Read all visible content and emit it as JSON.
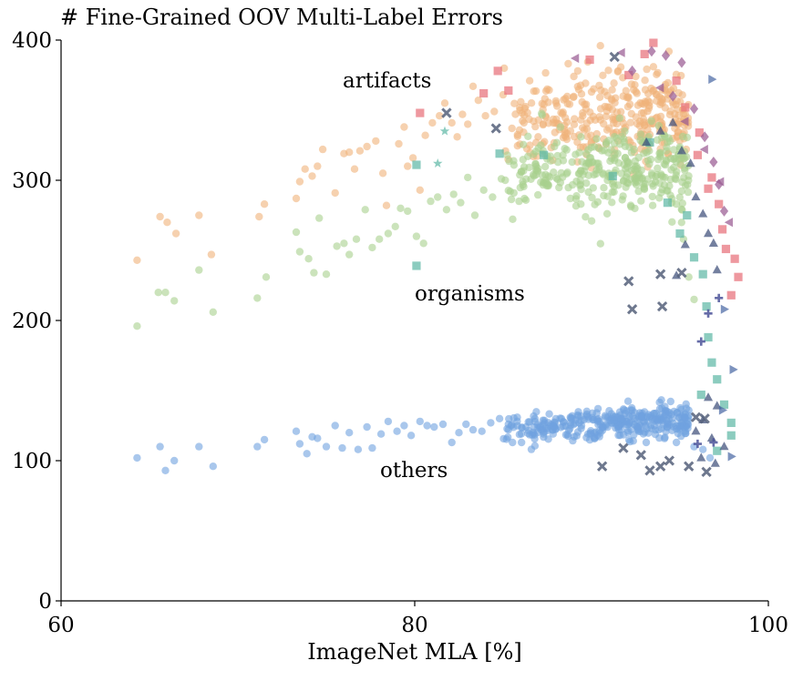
{
  "chart_data": {
    "type": "scatter",
    "title": "# Fine-Grained OOV Multi-Label Errors",
    "xlabel": "ImageNet MLA [%]",
    "ylabel": "",
    "xlim": [
      60,
      100
    ],
    "ylim": [
      0,
      400
    ],
    "xticks": [
      "60",
      "80",
      "100"
    ],
    "yticks": [
      "0",
      "100",
      "200",
      "300",
      "400"
    ],
    "grid": false,
    "annotations": [
      {
        "text": "artifacts",
        "x": 78.5,
        "y": 368
      },
      {
        "text": "organisms",
        "x": 83.0,
        "y": 216
      },
      {
        "text": "others",
        "x": 79.8,
        "y": 90
      }
    ],
    "groups": [
      {
        "label": "artifacts",
        "color": "#f0b27a",
        "y_center": 345,
        "points": [
          [
            64.3,
            243
          ],
          [
            65.6,
            274
          ],
          [
            66.0,
            270
          ],
          [
            66.5,
            262
          ],
          [
            67.8,
            275
          ],
          [
            68.5,
            247
          ],
          [
            71.2,
            274
          ],
          [
            71.5,
            283
          ],
          [
            73.3,
            287
          ],
          [
            73.5,
            299
          ],
          [
            73.8,
            308
          ],
          [
            74.2,
            303
          ],
          [
            74.5,
            310
          ],
          [
            74.8,
            322
          ],
          [
            75.5,
            291
          ],
          [
            76.0,
            319
          ],
          [
            76.3,
            320
          ],
          [
            76.6,
            308
          ],
          [
            76.9,
            321
          ],
          [
            77.3,
            324
          ],
          [
            77.8,
            328
          ],
          [
            78.2,
            305
          ],
          [
            78.4,
            282
          ],
          [
            79.1,
            326
          ],
          [
            79.4,
            338
          ],
          [
            79.6,
            310
          ],
          [
            79.9,
            316
          ],
          [
            80.3,
            293
          ],
          [
            80.6,
            332
          ],
          [
            81.0,
            341
          ],
          [
            81.4,
            346
          ],
          [
            81.7,
            355
          ],
          [
            82.1,
            341
          ],
          [
            82.4,
            331
          ],
          [
            82.7,
            347
          ],
          [
            83.0,
            340
          ],
          [
            83.3,
            367
          ],
          [
            83.6,
            357
          ],
          [
            84.0,
            346
          ],
          [
            84.5,
            349
          ],
          [
            85.0,
            361
          ],
          [
            85.5,
            337
          ],
          [
            86.0,
            356
          ],
          [
            86.5,
            371
          ],
          [
            87.0,
            343
          ],
          [
            87.5,
            365
          ],
          [
            88.0,
            355
          ],
          [
            88.5,
            334
          ],
          [
            89.0,
            374
          ],
          [
            89.5,
            348
          ],
          [
            90.0,
            363
          ],
          [
            90.5,
            396
          ],
          [
            91.0,
            352
          ],
          [
            91.5,
            378
          ],
          [
            92.0,
            359
          ],
          [
            92.5,
            374
          ],
          [
            93.0,
            339
          ],
          [
            93.5,
            381
          ],
          [
            94.0,
            355
          ],
          [
            94.5,
            364
          ]
        ]
      },
      {
        "label": "organisms",
        "color": "#a8d08d",
        "y_center": 305,
        "points": [
          [
            64.3,
            196
          ],
          [
            65.5,
            220
          ],
          [
            65.9,
            220
          ],
          [
            66.4,
            214
          ],
          [
            67.8,
            236
          ],
          [
            68.6,
            206
          ],
          [
            71.1,
            216
          ],
          [
            71.6,
            231
          ],
          [
            73.3,
            263
          ],
          [
            73.5,
            249
          ],
          [
            74.0,
            244
          ],
          [
            74.3,
            234
          ],
          [
            74.6,
            273
          ],
          [
            75.0,
            233
          ],
          [
            75.6,
            253
          ],
          [
            76.0,
            255
          ],
          [
            76.3,
            247
          ],
          [
            76.7,
            258
          ],
          [
            77.2,
            279
          ],
          [
            77.6,
            252
          ],
          [
            78.0,
            258
          ],
          [
            78.5,
            262
          ],
          [
            78.9,
            267
          ],
          [
            79.2,
            280
          ],
          [
            79.6,
            278
          ],
          [
            80.1,
            260
          ],
          [
            80.5,
            255
          ],
          [
            80.9,
            285
          ],
          [
            81.3,
            288
          ],
          [
            81.8,
            279
          ],
          [
            82.2,
            290
          ],
          [
            82.6,
            284
          ],
          [
            83.0,
            302
          ],
          [
            83.4,
            275
          ],
          [
            83.9,
            293
          ],
          [
            84.4,
            288
          ],
          [
            84.9,
            301
          ],
          [
            85.4,
            292
          ],
          [
            85.9,
            285
          ],
          [
            86.4,
            317
          ],
          [
            86.9,
            307
          ],
          [
            87.4,
            300
          ],
          [
            87.9,
            324
          ],
          [
            88.4,
            314
          ],
          [
            88.9,
            313
          ],
          [
            89.4,
            331
          ],
          [
            89.9,
            316
          ],
          [
            90.4,
            323
          ],
          [
            90.9,
            300
          ],
          [
            91.4,
            330
          ],
          [
            91.9,
            316
          ],
          [
            92.4,
            322
          ],
          [
            92.9,
            327
          ],
          [
            93.4,
            305
          ],
          [
            93.9,
            318
          ],
          [
            94.4,
            296
          ],
          [
            94.8,
            283
          ],
          [
            95.2,
            258
          ],
          [
            95.5,
            231
          ],
          [
            95.8,
            215
          ]
        ]
      },
      {
        "label": "others",
        "color": "#6fa1e0",
        "y_center": 125,
        "points": [
          [
            64.3,
            102
          ],
          [
            65.6,
            110
          ],
          [
            65.9,
            93
          ],
          [
            66.4,
            100
          ],
          [
            67.8,
            110
          ],
          [
            68.6,
            96
          ],
          [
            71.1,
            110
          ],
          [
            71.5,
            115
          ],
          [
            73.3,
            121
          ],
          [
            73.5,
            112
          ],
          [
            73.9,
            105
          ],
          [
            74.2,
            117
          ],
          [
            74.5,
            116
          ],
          [
            75.0,
            110
          ],
          [
            75.5,
            125
          ],
          [
            75.9,
            109
          ],
          [
            76.3,
            120
          ],
          [
            76.8,
            108
          ],
          [
            77.3,
            124
          ],
          [
            77.6,
            109
          ],
          [
            78.1,
            119
          ],
          [
            78.5,
            128
          ],
          [
            79.0,
            121
          ],
          [
            79.4,
            125
          ],
          [
            79.8,
            118
          ],
          [
            80.3,
            128
          ],
          [
            80.7,
            125
          ],
          [
            81.1,
            124
          ],
          [
            81.6,
            126
          ],
          [
            82.1,
            113
          ],
          [
            82.5,
            120
          ],
          [
            82.9,
            126
          ],
          [
            83.3,
            122
          ],
          [
            83.8,
            121
          ],
          [
            84.3,
            127
          ],
          [
            84.8,
            130
          ],
          [
            85.3,
            126
          ],
          [
            85.8,
            131
          ],
          [
            86.3,
            124
          ],
          [
            86.8,
            130
          ],
          [
            87.3,
            126
          ],
          [
            87.8,
            122
          ],
          [
            88.3,
            130
          ],
          [
            88.8,
            131
          ],
          [
            89.3,
            127
          ],
          [
            89.8,
            119
          ],
          [
            90.3,
            134
          ],
          [
            90.8,
            131
          ],
          [
            91.3,
            127
          ],
          [
            91.8,
            128
          ],
          [
            92.3,
            136
          ],
          [
            92.8,
            125
          ],
          [
            93.3,
            131
          ],
          [
            93.8,
            122
          ],
          [
            94.3,
            126
          ],
          [
            94.8,
            113
          ],
          [
            95.3,
            121
          ],
          [
            95.8,
            110
          ],
          [
            96.3,
            108
          ],
          [
            96.7,
            102
          ]
        ]
      }
    ],
    "marker_series": [
      {
        "marker": "square",
        "color": "#e8707a",
        "points": [
          [
            84.7,
            378
          ],
          [
            83.9,
            362
          ],
          [
            85.3,
            364
          ],
          [
            80.3,
            348
          ],
          [
            89.9,
            386
          ],
          [
            92.1,
            375
          ],
          [
            93.5,
            398
          ],
          [
            93.0,
            390
          ],
          [
            95.3,
            352
          ],
          [
            96.1,
            334
          ],
          [
            96.8,
            302
          ],
          [
            97.2,
            283
          ],
          [
            97.6,
            251
          ],
          [
            98.1,
            244
          ],
          [
            98.3,
            231
          ],
          [
            97.9,
            218
          ],
          [
            94.8,
            371
          ],
          [
            96.0,
            318
          ],
          [
            96.6,
            294
          ],
          [
            97.4,
            265
          ]
        ]
      },
      {
        "marker": "square",
        "color": "#5fb8a6",
        "points": [
          [
            80.1,
            239
          ],
          [
            80.1,
            311
          ],
          [
            84.8,
            319
          ],
          [
            87.3,
            318
          ],
          [
            91.2,
            303
          ],
          [
            93.3,
            327
          ],
          [
            95.0,
            262
          ],
          [
            95.8,
            245
          ],
          [
            96.3,
            233
          ],
          [
            96.5,
            210
          ],
          [
            96.6,
            188
          ],
          [
            96.8,
            170
          ],
          [
            97.1,
            158
          ],
          [
            97.5,
            140
          ],
          [
            97.9,
            127
          ],
          [
            97.9,
            118
          ],
          [
            97.1,
            107
          ],
          [
            96.2,
            147
          ],
          [
            95.4,
            275
          ],
          [
            94.3,
            284
          ]
        ]
      },
      {
        "marker": "triangle-up",
        "color": "#3e4f7a",
        "points": [
          [
            93.1,
            327
          ],
          [
            93.9,
            335
          ],
          [
            94.6,
            341
          ],
          [
            95.1,
            321
          ],
          [
            95.6,
            312
          ],
          [
            95.9,
            288
          ],
          [
            96.3,
            276
          ],
          [
            96.6,
            262
          ],
          [
            96.9,
            255
          ],
          [
            97.1,
            236
          ],
          [
            95.3,
            254
          ],
          [
            94.8,
            232
          ],
          [
            96.6,
            145
          ],
          [
            97.1,
            139
          ],
          [
            96.3,
            129
          ],
          [
            95.9,
            121
          ],
          [
            96.8,
            116
          ],
          [
            97.5,
            110
          ],
          [
            96.2,
            102
          ],
          [
            97.0,
            98
          ]
        ]
      },
      {
        "marker": "diamond",
        "color": "#9a5c93",
        "points": [
          [
            93.4,
            392
          ],
          [
            94.2,
            389
          ],
          [
            95.1,
            384
          ],
          [
            92.3,
            378
          ],
          [
            94.6,
            360
          ],
          [
            95.8,
            351
          ],
          [
            96.4,
            331
          ],
          [
            96.9,
            313
          ],
          [
            97.2,
            297
          ],
          [
            97.5,
            278
          ]
        ]
      },
      {
        "marker": "triangle-left",
        "color": "#9a5c93",
        "points": [
          [
            89.1,
            387
          ],
          [
            91.7,
            391
          ],
          [
            93.9,
            366
          ],
          [
            95.3,
            342
          ],
          [
            96.4,
            322
          ],
          [
            97.3,
            299
          ],
          [
            97.8,
            270
          ]
        ]
      },
      {
        "marker": "cross",
        "color": "#55607a",
        "points": [
          [
            81.8,
            348
          ],
          [
            84.6,
            337
          ],
          [
            91.3,
            388
          ],
          [
            92.1,
            228
          ],
          [
            93.9,
            233
          ],
          [
            95.1,
            234
          ],
          [
            92.3,
            208
          ],
          [
            94.0,
            210
          ],
          [
            90.6,
            96
          ],
          [
            91.8,
            109
          ],
          [
            92.8,
            104
          ],
          [
            93.3,
            93
          ],
          [
            93.9,
            96
          ],
          [
            94.4,
            100
          ],
          [
            95.5,
            96
          ],
          [
            96.5,
            92
          ],
          [
            95.9,
            131
          ],
          [
            96.4,
            130
          ]
        ]
      },
      {
        "marker": "plus",
        "color": "#4b5299",
        "points": [
          [
            96.2,
            185
          ],
          [
            96.6,
            205
          ],
          [
            97.2,
            216
          ],
          [
            96.0,
            112
          ],
          [
            96.9,
            113
          ]
        ]
      },
      {
        "marker": "triangle-right",
        "color": "#4b6aa5",
        "points": [
          [
            96.8,
            372
          ],
          [
            97.5,
            208
          ],
          [
            97.4,
            136
          ],
          [
            98.0,
            165
          ],
          [
            97.9,
            103
          ]
        ]
      },
      {
        "marker": "star",
        "color": "#5fb8a6",
        "points": [
          [
            81.3,
            312
          ],
          [
            81.7,
            335
          ]
        ]
      }
    ]
  }
}
